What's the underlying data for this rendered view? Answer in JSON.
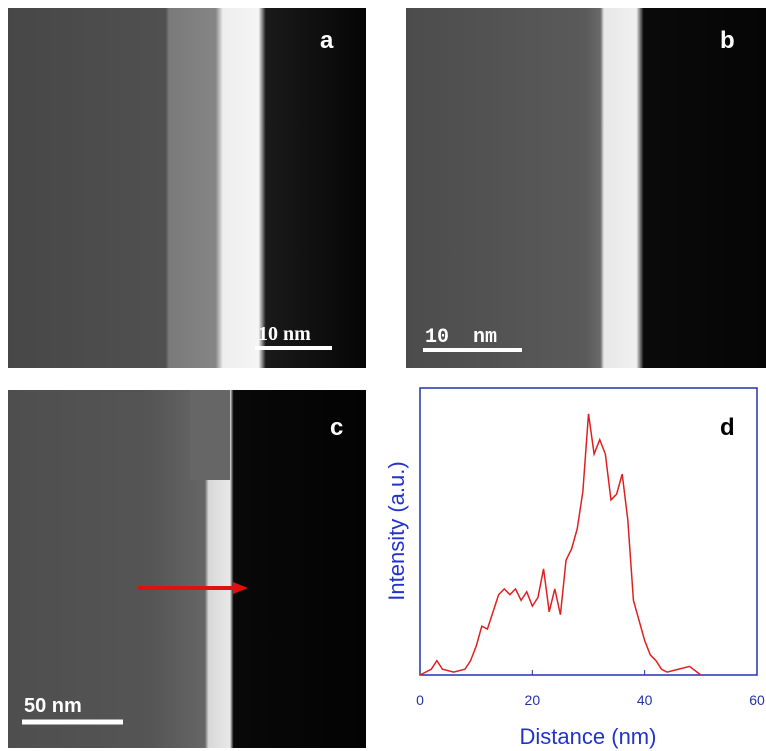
{
  "panels": [
    {
      "label": "a",
      "scale_bar": "10 nm"
    },
    {
      "label": "b",
      "scale_bar": "10  nm"
    },
    {
      "label": "c",
      "scale_bar": "50 nm"
    }
  ],
  "chart_data": {
    "type": "line",
    "label": "d",
    "xlabel": "Distance (nm)",
    "ylabel": "Intensity (a.u.)",
    "xlim": [
      0,
      60
    ],
    "xticks": [
      0,
      20,
      40,
      60
    ],
    "ylim": [
      0,
      1
    ],
    "color": "#e02020",
    "x": [
      0,
      2,
      3,
      4,
      6,
      8,
      9,
      10,
      11,
      12,
      13,
      14,
      15,
      16,
      17,
      18,
      19,
      20,
      21,
      22,
      23,
      24,
      25,
      26,
      27,
      28,
      29,
      30,
      31,
      32,
      33,
      34,
      35,
      36,
      37,
      38,
      39,
      40,
      41,
      42,
      43,
      44,
      46,
      48,
      50
    ],
    "values": [
      0,
      0.02,
      0.05,
      0.02,
      0.01,
      0.02,
      0.05,
      0.1,
      0.17,
      0.16,
      0.22,
      0.28,
      0.3,
      0.28,
      0.3,
      0.26,
      0.29,
      0.24,
      0.27,
      0.37,
      0.22,
      0.3,
      0.21,
      0.4,
      0.44,
      0.51,
      0.64,
      0.91,
      0.77,
      0.82,
      0.77,
      0.61,
      0.63,
      0.7,
      0.54,
      0.26,
      0.19,
      0.12,
      0.07,
      0.05,
      0.02,
      0.01,
      0.02,
      0.03,
      0
    ]
  }
}
